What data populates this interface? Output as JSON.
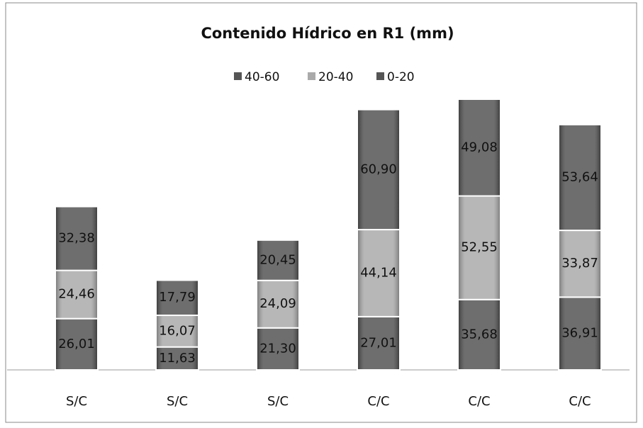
{
  "chart_data": {
    "type": "bar",
    "stacked": true,
    "title": "Contenido Hídrico en R1 (mm)",
    "categories": [
      "S/C",
      "S/C",
      "S/C",
      "C/C",
      "C/C",
      "C/C"
    ],
    "series": [
      {
        "name": "0-20",
        "color": "#555555",
        "values": [
          26.01,
          11.63,
          21.3,
          27.01,
          35.68,
          36.91
        ],
        "value_labels": [
          "26,01",
          "11,63",
          "21,30",
          "27,01",
          "35,68",
          "36,91"
        ]
      },
      {
        "name": "20-40",
        "color": "#aaaaaa",
        "values": [
          24.46,
          16.07,
          24.09,
          44.14,
          52.55,
          33.87
        ],
        "value_labels": [
          "24,46",
          "16,07",
          "24,09",
          "44,14",
          "52,55",
          "33,87"
        ]
      },
      {
        "name": "40-60",
        "color": "#555555",
        "values": [
          32.38,
          17.79,
          20.45,
          60.9,
          49.08,
          53.64
        ],
        "value_labels": [
          "32,38",
          "17,79",
          "20,45",
          "60,90",
          "49,08",
          "53,64"
        ]
      }
    ],
    "legend": "top"
  }
}
